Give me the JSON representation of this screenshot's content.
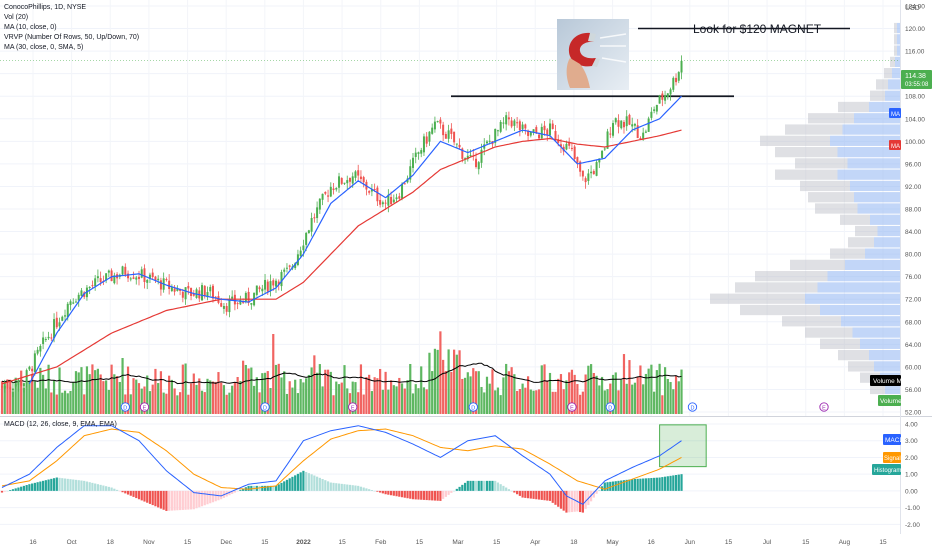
{
  "legend": {
    "symbol_line": "ConocoPhillips, 1D, NYSE",
    "vol_line": "Vol (20)",
    "ma10_line": "MA (10, close, 0)",
    "vrvp_line": "VRVP (Number Of Rows, 50, Up/Down, 70)",
    "ma30_line": "MA (30, close, 0, SMA, 5)"
  },
  "annotation": {
    "text": "Look for $120 MAGNET",
    "image": "magnet-photo"
  },
  "price_badges": {
    "last": "114.38",
    "countdown": "03:55:08",
    "ma_short": "MA",
    "ma_long": "MA"
  },
  "overlay_badges": {
    "volume_ma": "Volume MA",
    "volume": "Volume"
  },
  "macd_panel": {
    "title": "MACD (12, 26, close, 9, EMA, EMA)",
    "badge_macd": "MACD",
    "badge_signal": "Signal",
    "badge_histogram": "Histogram"
  },
  "event_markers": {
    "dividend": "D",
    "earnings": "E"
  },
  "colors": {
    "up": "#26a69a",
    "up_vol": "#4caf50",
    "down": "#ef5350",
    "ma10": "#2962ff",
    "ma30": "#e53935",
    "vol_ma": "#000000",
    "macd": "#2962ff",
    "signal": "#ff9800",
    "vrvp": "#8fb4f2",
    "magnet_box": "#4caf50"
  },
  "chart_data": {
    "type": "candlestick",
    "price_axis": {
      "unit": "USD",
      "min": 52,
      "max": 124,
      "ticks": [
        "124.00",
        "120.00",
        "116.00",
        "112.00",
        "108.00",
        "104.00",
        "100.00",
        "96.00",
        "92.00",
        "88.00",
        "84.00",
        "80.00",
        "76.00",
        "72.00",
        "68.00",
        "64.00",
        "60.00",
        "56.00",
        "52.00"
      ]
    },
    "macd_axis": {
      "min": -2.4,
      "max": 4.3,
      "ticks": [
        "4.00",
        "3.00",
        "2.00",
        "1.00",
        "0.00",
        "-1.00",
        "-2.00"
      ]
    },
    "time_axis": {
      "labels": [
        "16",
        "Oct",
        "18",
        "Nov",
        "15",
        "Dec",
        "15",
        "2022",
        "15",
        "Feb",
        "15",
        "Mar",
        "15",
        "Apr",
        "18",
        "May",
        "16",
        "Jun",
        "15",
        "Jul",
        "15",
        "Aug",
        "15"
      ]
    },
    "resistance_level": 108,
    "target_level": 120,
    "last_price": 114.38,
    "waypoints": [
      [
        0,
        56.5
      ],
      [
        8,
        57.5
      ],
      [
        15,
        64
      ],
      [
        25,
        72
      ],
      [
        35,
        75
      ],
      [
        45,
        77
      ],
      [
        52,
        76
      ],
      [
        62,
        74
      ],
      [
        68,
        73
      ],
      [
        75,
        73.5
      ],
      [
        82,
        71
      ],
      [
        90,
        72
      ],
      [
        98,
        75
      ],
      [
        105,
        77
      ],
      [
        113,
        86
      ],
      [
        120,
        92
      ],
      [
        128,
        94
      ],
      [
        135,
        91
      ],
      [
        140,
        89
      ],
      [
        145,
        91
      ],
      [
        152,
        98
      ],
      [
        158,
        103
      ],
      [
        163,
        101
      ],
      [
        168,
        98
      ],
      [
        172,
        96
      ],
      [
        178,
        100
      ],
      [
        185,
        104
      ],
      [
        192,
        101
      ],
      [
        200,
        102
      ],
      [
        208,
        98
      ],
      [
        212,
        93
      ],
      [
        218,
        96
      ],
      [
        223,
        104
      ],
      [
        229,
        103
      ],
      [
        234,
        101
      ],
      [
        238,
        106
      ],
      [
        243,
        109
      ],
      [
        246,
        111.5
      ],
      [
        248,
        114.4
      ]
    ],
    "ma10_points": [
      [
        10,
        57
      ],
      [
        20,
        66
      ],
      [
        30,
        73
      ],
      [
        40,
        76
      ],
      [
        50,
        76.5
      ],
      [
        60,
        74.5
      ],
      [
        70,
        73
      ],
      [
        80,
        72
      ],
      [
        90,
        71.5
      ],
      [
        100,
        74
      ],
      [
        110,
        80
      ],
      [
        120,
        89
      ],
      [
        130,
        93
      ],
      [
        140,
        90
      ],
      [
        150,
        94
      ],
      [
        160,
        100
      ],
      [
        170,
        98
      ],
      [
        180,
        100
      ],
      [
        190,
        102
      ],
      [
        200,
        101
      ],
      [
        210,
        96
      ],
      [
        220,
        97
      ],
      [
        230,
        102
      ],
      [
        240,
        104
      ],
      [
        248,
        108
      ]
    ],
    "ma30_points": [
      [
        0,
        57
      ],
      [
        20,
        60
      ],
      [
        40,
        66
      ],
      [
        60,
        70
      ],
      [
        80,
        72
      ],
      [
        100,
        72
      ],
      [
        110,
        75
      ],
      [
        120,
        80
      ],
      [
        130,
        85
      ],
      [
        140,
        88
      ],
      [
        150,
        91
      ],
      [
        160,
        95
      ],
      [
        170,
        97
      ],
      [
        180,
        99
      ],
      [
        190,
        100
      ],
      [
        200,
        100.5
      ],
      [
        210,
        99.5
      ],
      [
        220,
        99
      ],
      [
        230,
        100
      ],
      [
        240,
        101
      ],
      [
        248,
        102
      ]
    ],
    "macd_points": [
      [
        0,
        0.2
      ],
      [
        10,
        1.0
      ],
      [
        20,
        2.6
      ],
      [
        30,
        3.9
      ],
      [
        40,
        3.9
      ],
      [
        50,
        3.0
      ],
      [
        60,
        1.2
      ],
      [
        70,
        -0.1
      ],
      [
        80,
        -0.3
      ],
      [
        90,
        0.4
      ],
      [
        100,
        0.6
      ],
      [
        110,
        3.0
      ],
      [
        120,
        3.6
      ],
      [
        130,
        3.9
      ],
      [
        140,
        3.5
      ],
      [
        150,
        2.8
      ],
      [
        160,
        2.0
      ],
      [
        170,
        3.0
      ],
      [
        180,
        3.3
      ],
      [
        190,
        2.1
      ],
      [
        200,
        1.0
      ],
      [
        206,
        -0.3
      ],
      [
        212,
        -0.8
      ],
      [
        220,
        0.6
      ],
      [
        230,
        1.4
      ],
      [
        240,
        2.1
      ],
      [
        248,
        3.0
      ]
    ],
    "signal_points": [
      [
        0,
        0.3
      ],
      [
        10,
        0.6
      ],
      [
        20,
        1.8
      ],
      [
        30,
        3.3
      ],
      [
        40,
        3.7
      ],
      [
        50,
        3.5
      ],
      [
        60,
        2.4
      ],
      [
        70,
        1.0
      ],
      [
        80,
        0.2
      ],
      [
        90,
        0.1
      ],
      [
        100,
        0.3
      ],
      [
        110,
        1.8
      ],
      [
        120,
        3.1
      ],
      [
        130,
        3.6
      ],
      [
        140,
        3.7
      ],
      [
        150,
        3.3
      ],
      [
        160,
        2.6
      ],
      [
        170,
        2.4
      ],
      [
        180,
        2.7
      ],
      [
        190,
        2.5
      ],
      [
        200,
        1.6
      ],
      [
        210,
        0.6
      ],
      [
        220,
        0.1
      ],
      [
        230,
        0.7
      ],
      [
        240,
        1.3
      ],
      [
        248,
        2.0
      ]
    ],
    "vrvp_profile": [
      [
        120,
        6
      ],
      [
        118,
        6
      ],
      [
        116,
        6
      ],
      [
        114,
        10
      ],
      [
        112,
        16
      ],
      [
        110,
        24
      ],
      [
        108,
        30
      ],
      [
        106,
        62
      ],
      [
        104,
        92
      ],
      [
        102,
        115
      ],
      [
        100,
        140
      ],
      [
        98,
        125
      ],
      [
        96,
        105
      ],
      [
        94,
        125
      ],
      [
        92,
        100
      ],
      [
        90,
        92
      ],
      [
        88,
        85
      ],
      [
        86,
        60
      ],
      [
        84,
        45
      ],
      [
        82,
        52
      ],
      [
        80,
        70
      ],
      [
        78,
        110
      ],
      [
        76,
        145
      ],
      [
        74,
        165
      ],
      [
        72,
        190
      ],
      [
        70,
        160
      ],
      [
        68,
        118
      ],
      [
        66,
        95
      ],
      [
        64,
        80
      ],
      [
        62,
        62
      ],
      [
        60,
        52
      ],
      [
        58,
        40
      ],
      [
        56,
        30
      ]
    ],
    "volume_axis_max": 30,
    "dividend_markers": [
      45,
      96,
      172,
      222,
      252,
      330
    ],
    "earnings_markers": [
      52,
      128,
      208,
      300
    ]
  }
}
